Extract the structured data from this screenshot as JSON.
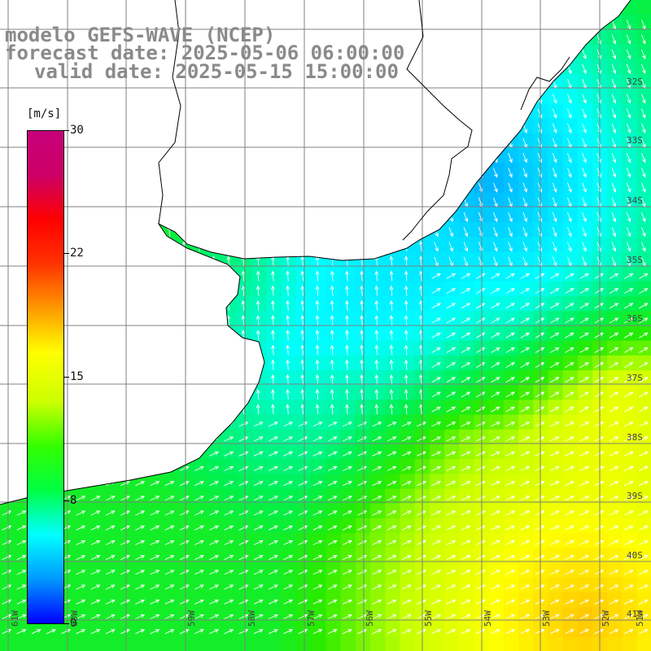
{
  "title": {
    "line1": "modelo GEFS-WAVE (NCEP)",
    "line2": "forecast date: 2025-05-06 06:00:00",
    "line3": "valid date: 2025-05-15 15:00:00"
  },
  "colorbar": {
    "unit": "[m/s]",
    "ticks": [
      "30",
      "22",
      "15",
      "8",
      "0"
    ],
    "colors": [
      "#0000ff",
      "#0099ff",
      "#00ffff",
      "#00ff44",
      "#33ff00",
      "#ccff00",
      "#ffff00",
      "#ff9900",
      "#ff3300",
      "#ff0000",
      "#cc0066",
      "#c8007a"
    ]
  },
  "map": {
    "lat_labels": [
      "32S",
      "33S",
      "34S",
      "35S",
      "36S",
      "37S",
      "38S",
      "39S",
      "40S",
      "41S"
    ],
    "lon_labels": [
      "61W",
      "60W",
      "59W",
      "58W",
      "57W",
      "56W",
      "55W",
      "54W",
      "53W",
      "52W",
      "51W"
    ],
    "colors": {
      "land": "#ffffff",
      "coast": "#000000",
      "grid": "#808080",
      "arrow": "#ffffff"
    }
  }
}
